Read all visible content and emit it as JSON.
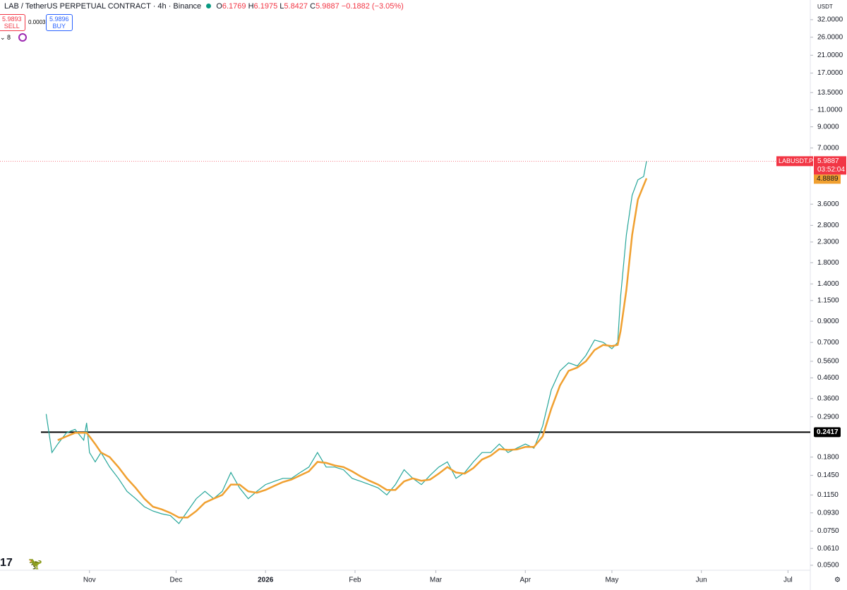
{
  "chart_data": {
    "type": "line",
    "header": {
      "title": "LAB / TetherUS PERPETUAL CONTRACT · 4h · Binance",
      "o_label": "O",
      "o": "6.1769",
      "h_label": "H",
      "h": "6.1975",
      "l_label": "L",
      "l": "5.8427",
      "c_label": "C",
      "c": "5.9887",
      "change": "−0.1882 (−3.05%)",
      "sell_price": "5.9893",
      "sell": "SELL",
      "spread": "0.0003",
      "buy_price": "5.9896",
      "buy": "BUY",
      "indicator_count": "8"
    },
    "currency": "USDT",
    "symbol": "LABUSDT.P",
    "countdown": "03:52:04",
    "log_scale": true,
    "xlim": [
      0,
      280
    ],
    "xticks": [
      {
        "value": 31,
        "label": "Nov"
      },
      {
        "value": 61,
        "label": "Dec"
      },
      {
        "value": 92,
        "label": "2026"
      },
      {
        "value": 123,
        "label": "Feb"
      },
      {
        "value": 151,
        "label": "Mar"
      },
      {
        "value": 182,
        "label": "Apr"
      },
      {
        "value": 212,
        "label": "May"
      },
      {
        "value": 243,
        "label": "Jun"
      },
      {
        "value": 273,
        "label": "Jul"
      }
    ],
    "ylim": [
      0.0373,
      40.4
    ],
    "yticks": [
      {
        "value": 32,
        "label": "32.0000"
      },
      {
        "value": 26,
        "label": "26.0000"
      },
      {
        "value": 21,
        "label": "21.0000"
      },
      {
        "value": 17,
        "label": "17.0000"
      },
      {
        "value": 13.5,
        "label": "13.5000"
      },
      {
        "value": 11,
        "label": "11.0000"
      },
      {
        "value": 9,
        "label": "9.0000"
      },
      {
        "value": 7,
        "label": "7.0000"
      },
      {
        "value": 3.6,
        "label": "3.6000"
      },
      {
        "value": 2.8,
        "label": "2.8000"
      },
      {
        "value": 2.3,
        "label": "2.3000"
      },
      {
        "value": 1.8,
        "label": "1.8000"
      },
      {
        "value": 1.4,
        "label": "1.4000"
      },
      {
        "value": 1.15,
        "label": "1.1500"
      },
      {
        "value": 0.9,
        "label": "0.9000"
      },
      {
        "value": 0.7,
        "label": "0.7000"
      },
      {
        "value": 0.56,
        "label": "0.5600"
      },
      {
        "value": 0.46,
        "label": "0.4600"
      },
      {
        "value": 0.36,
        "label": "0.3600"
      },
      {
        "value": 0.29,
        "label": "0.2900"
      },
      {
        "value": 0.18,
        "label": "0.1800"
      },
      {
        "value": 0.145,
        "label": "0.1450"
      },
      {
        "value": 0.115,
        "label": "0.1150"
      },
      {
        "value": 0.093,
        "label": "0.0930"
      },
      {
        "value": 0.075,
        "label": "0.0750"
      },
      {
        "value": 0.061,
        "label": "0.0610"
      },
      {
        "value": 0.05,
        "label": "0.0500"
      }
    ],
    "hline": 0.2417,
    "x": [
      16,
      18,
      20,
      23,
      26,
      29,
      30,
      31,
      33,
      35,
      38,
      41,
      44,
      47,
      50,
      53,
      56,
      59,
      62,
      65,
      68,
      71,
      74,
      77,
      80,
      83,
      86,
      89,
      92,
      95,
      98,
      101,
      104,
      107,
      110,
      113,
      116,
      119,
      122,
      125,
      128,
      131,
      134,
      137,
      140,
      143,
      146,
      149,
      152,
      155,
      158,
      161,
      164,
      167,
      170,
      173,
      176,
      179,
      182,
      185,
      188,
      191,
      194,
      197,
      200,
      203,
      206,
      209,
      212,
      214,
      215,
      217,
      219,
      221,
      223,
      224
    ],
    "series": [
      {
        "color": "#26a69a",
        "values": [
          0.3,
          0.19,
          0.21,
          0.24,
          0.25,
          0.22,
          0.27,
          0.19,
          0.17,
          0.19,
          0.16,
          0.14,
          0.12,
          0.11,
          0.1,
          0.095,
          0.092,
          0.09,
          0.082,
          0.095,
          0.11,
          0.12,
          0.11,
          0.12,
          0.15,
          0.125,
          0.11,
          0.12,
          0.13,
          0.135,
          0.14,
          0.14,
          0.15,
          0.16,
          0.19,
          0.16,
          0.16,
          0.155,
          0.14,
          0.135,
          0.13,
          0.125,
          0.115,
          0.13,
          0.155,
          0.14,
          0.13,
          0.145,
          0.16,
          0.17,
          0.14,
          0.15,
          0.17,
          0.19,
          0.19,
          0.21,
          0.19,
          0.2,
          0.21,
          0.2,
          0.26,
          0.4,
          0.5,
          0.55,
          0.53,
          0.6,
          0.72,
          0.7,
          0.65,
          0.7,
          1.2,
          2.5,
          4.0,
          4.8,
          5.0,
          5.9887
        ]
      },
      {
        "color": "#f0a030",
        "values": [
          null,
          null,
          0.22,
          0.23,
          0.24,
          0.24,
          0.24,
          0.23,
          0.21,
          0.19,
          0.18,
          0.16,
          0.14,
          0.125,
          0.11,
          0.1,
          0.097,
          0.093,
          0.088,
          0.088,
          0.095,
          0.105,
          0.11,
          0.115,
          0.13,
          0.13,
          0.12,
          0.118,
          0.122,
          0.128,
          0.134,
          0.138,
          0.145,
          0.152,
          0.17,
          0.168,
          0.163,
          0.16,
          0.152,
          0.143,
          0.136,
          0.13,
          0.122,
          0.122,
          0.135,
          0.14,
          0.136,
          0.138,
          0.148,
          0.16,
          0.15,
          0.148,
          0.158,
          0.175,
          0.183,
          0.198,
          0.196,
          0.197,
          0.203,
          0.203,
          0.23,
          0.32,
          0.42,
          0.5,
          0.52,
          0.56,
          0.64,
          0.68,
          0.67,
          0.68,
          0.8,
          1.3,
          2.5,
          3.8,
          4.5,
          4.8889
        ]
      }
    ]
  }
}
